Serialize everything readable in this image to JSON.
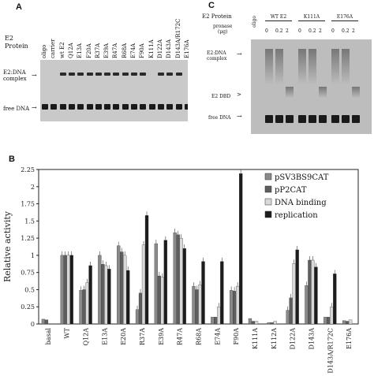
{
  "panelA": {
    "letter": "A",
    "protein_label_line1": "E2",
    "protein_label_line2": "Protein",
    "complex_label_line1": "E2:DNA",
    "complex_label_line2": "complex",
    "free_label": "free DNA",
    "lanes": [
      "oligo",
      "carrier",
      "wt E2",
      "Q12A",
      "E13A",
      "F20A",
      "R37A",
      "E39A",
      "R47A",
      "R68A",
      "E74A",
      "F90A",
      "K111A",
      "D122A",
      "D143A",
      "D143A/R172C",
      "E176A"
    ]
  },
  "panelC": {
    "letter": "C",
    "protein_label": "E2 Protein",
    "pronase_line1": "pronase",
    "pronase_line2": "(μg)",
    "oligo": "oligo",
    "groups": [
      {
        "name": "WT E2",
        "doses": [
          "0",
          "0.2",
          "2"
        ]
      },
      {
        "name": "K111A",
        "doses": [
          "0",
          "0.2",
          "2"
        ]
      },
      {
        "name": "E176A",
        "doses": [
          "0",
          "0.2",
          "2"
        ]
      }
    ],
    "complex_label_line1": "E2:DNA",
    "complex_label_line2": "complex",
    "dbd_label": "E2 DBD",
    "free_label": "free DNA"
  },
  "panelB": {
    "letter": "B"
  },
  "chart_data": {
    "type": "bar",
    "title": "",
    "xlabel": "",
    "ylabel": "Relative activity",
    "ylim": [
      0,
      2.25
    ],
    "yticks": [
      "0",
      "0.25",
      "0.5",
      "0.75",
      "1",
      "1.25",
      "1.5",
      "1.75",
      "2",
      "2.25"
    ],
    "categories": [
      "basal",
      "WT",
      "Q12A",
      "E13A",
      "E20A",
      "R37A",
      "E39A",
      "R47A",
      "R68A",
      "E74A",
      "F90A",
      "K111A",
      "K112A",
      "D122A",
      "D143A",
      "D143A/R172C",
      "E176A"
    ],
    "series": [
      {
        "name": "pSV3BS9CAT",
        "color": "#8a8a8a",
        "values": [
          0.07,
          1.0,
          0.49,
          1.0,
          1.14,
          0.21,
          1.17,
          1.33,
          0.55,
          0.1,
          0.49,
          0.08,
          0.02,
          0.2,
          0.56,
          0.1,
          0.05
        ]
      },
      {
        "name": "pP2CAT",
        "color": "#5e5e5e",
        "values": [
          0.06,
          1.0,
          0.5,
          0.87,
          1.05,
          0.45,
          0.7,
          1.3,
          0.5,
          0.1,
          0.48,
          0.04,
          0.02,
          0.38,
          0.93,
          0.1,
          0.04
        ]
      },
      {
        "name": "DNA binding",
        "color": "#d8d8d8",
        "values": [
          null,
          1.0,
          0.6,
          0.85,
          1.0,
          1.15,
          0.68,
          1.25,
          0.57,
          0.25,
          0.55,
          0.04,
          0.04,
          0.88,
          0.93,
          0.25,
          0.06
        ]
      },
      {
        "name": "replication",
        "color": "#1c1c1c",
        "values": [
          null,
          1.0,
          0.85,
          0.8,
          0.78,
          1.58,
          1.22,
          1.1,
          0.91,
          0.91,
          2.19,
          0.0,
          0.0,
          1.08,
          0.83,
          0.73,
          0.0
        ]
      }
    ],
    "grid": false,
    "legend": "top-right"
  }
}
